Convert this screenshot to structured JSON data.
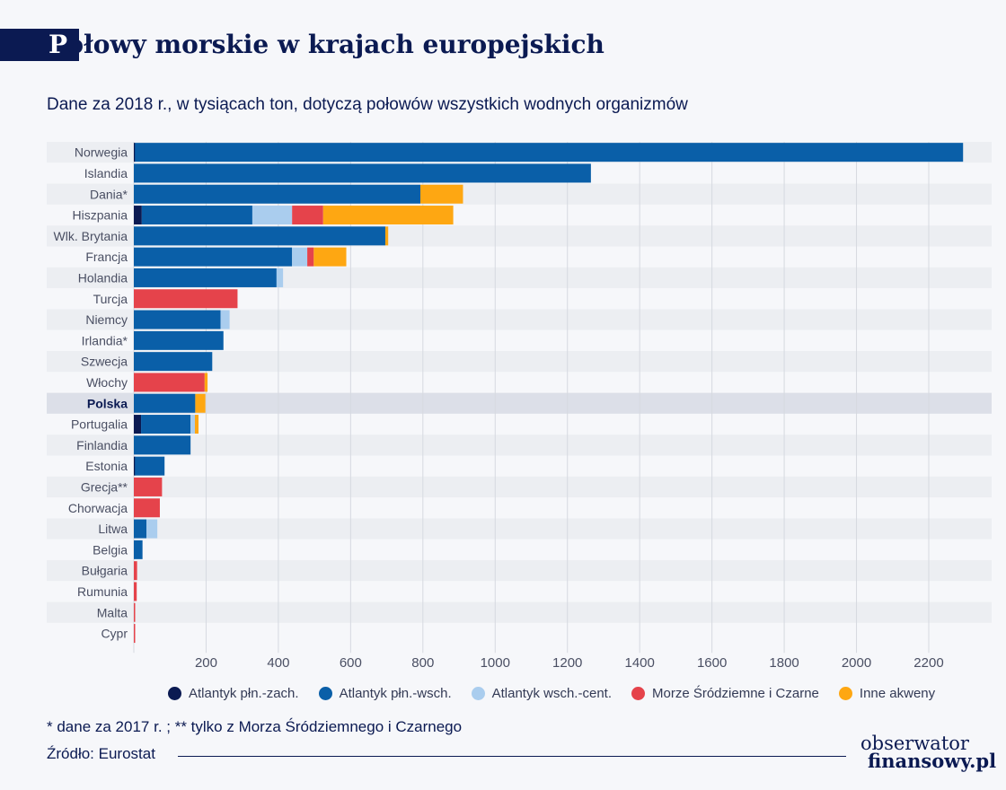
{
  "header": {
    "title_first": "P",
    "title_rest": "ołowy morskie w krajach europejskich",
    "subtitle": "Dane za 2018 r., w tysiącach ton, dotyczą połowów wszystkich wodnych organizmów"
  },
  "chart_data": {
    "type": "bar",
    "orientation": "horizontal",
    "stacked": true,
    "categories": [
      "Norwegia",
      "Islandia",
      "Dania*",
      "Hiszpania",
      "Wlk. Brytania",
      "Francja",
      "Holandia",
      "Turcja",
      "Niemcy",
      "Irlandia*",
      "Szwecja",
      "Włochy",
      "Polska",
      "Portugalia",
      "Finlandia",
      "Estonia",
      "Grecja**",
      "Chorwacja",
      "Litwa",
      "Belgia",
      "Bułgaria",
      "Rumunia",
      "Malta",
      "Cypr"
    ],
    "highlight": "Polska",
    "series": [
      {
        "name": "Atlantyk płn.-zach.",
        "color": "#0b1a52",
        "values": [
          3,
          0,
          0,
          22,
          0,
          0,
          0,
          0,
          0,
          0,
          0,
          0,
          0,
          20,
          0,
          3,
          0,
          0,
          0,
          0,
          0,
          0,
          0,
          0
        ]
      },
      {
        "name": "Atlantyk płn.-wsch.",
        "color": "#0a5fa8",
        "values": [
          2292,
          1265,
          793,
          306,
          696,
          438,
          395,
          0,
          240,
          248,
          217,
          0,
          170,
          137,
          157,
          82,
          0,
          0,
          35,
          24,
          0,
          0,
          0,
          0
        ]
      },
      {
        "name": "Atlantyk wsch.-cent.",
        "color": "#aacdee",
        "values": [
          0,
          0,
          0,
          110,
          0,
          42,
          18,
          0,
          25,
          0,
          0,
          0,
          0,
          12,
          0,
          0,
          0,
          0,
          30,
          0,
          0,
          0,
          0,
          0
        ]
      },
      {
        "name": "Morze Śródziemne i Czarne",
        "color": "#e5434b",
        "values": [
          0,
          0,
          0,
          86,
          0,
          18,
          0,
          287,
          0,
          0,
          0,
          196,
          0,
          0,
          0,
          0,
          78,
          72,
          0,
          0,
          9,
          8,
          2,
          2
        ]
      },
      {
        "name": "Inne akweny",
        "color": "#fea712",
        "values": [
          0,
          0,
          118,
          360,
          8,
          90,
          0,
          0,
          0,
          0,
          0,
          8,
          28,
          10,
          0,
          0,
          0,
          0,
          0,
          0,
          0,
          0,
          0,
          0
        ]
      }
    ],
    "x_ticks": [
      200,
      400,
      600,
      800,
      1000,
      1200,
      1400,
      1600,
      1800,
      2000,
      2200
    ],
    "xlim": [
      0,
      2380
    ],
    "grid": true,
    "legend_position": "bottom"
  },
  "footer": {
    "note": "* dane za 2017 r. ; ** tylko z Morza Śródziemnego i Czarnego",
    "source": "Źródło: Eurostat",
    "logo_line1": "obserwator",
    "logo_line2": "finansowy.pl"
  }
}
